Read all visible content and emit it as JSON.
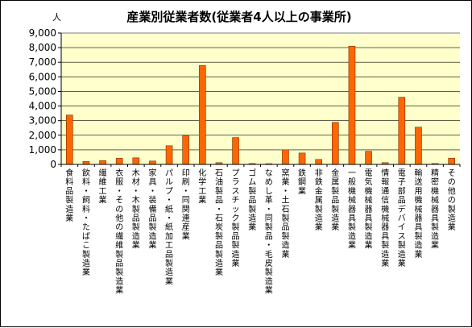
{
  "chart_data": {
    "type": "bar",
    "title": "産業別従業者数(従業者4人以上の事業所)",
    "unit_label": "人",
    "ylim": [
      0,
      9000
    ],
    "yticks": [
      "0",
      "1,000",
      "2,000",
      "3,000",
      "4,000",
      "5,000",
      "6,000",
      "7,000",
      "8,000",
      "9,000"
    ],
    "grid": true,
    "legend": "none",
    "categories": [
      "食料品製造業",
      "飲料・飼料・たばこ製造業",
      "繊維工業",
      "衣服・その他の繊維製品製造業",
      "木材・木製品製造業",
      "家具・装備品製造業",
      "パルプ・紙・紙加工品製造業",
      "印刷・同関連産業",
      "化学工業",
      "石油製品・石炭製品製造業",
      "プラスチック製品製造業",
      "ゴム製品製造業",
      "なめし革・同製品・毛皮製造業",
      "窯業・土石製品製造業",
      "鉄鋼業",
      "非鉄金属製造業",
      "金属製品製造業",
      "一般機械器具製造業",
      "電気機械器具製造業",
      "情報通信機械器具製造業",
      "電子部品デバイス製造業",
      "輸送用機械器具製造業",
      "精密機械器具製造業",
      "その他の製造業"
    ],
    "values": [
      3380,
      200,
      260,
      420,
      450,
      230,
      1280,
      1960,
      6780,
      120,
      1840,
      60,
      50,
      1000,
      780,
      340,
      2880,
      8100,
      900,
      120,
      4600,
      2550,
      60,
      430
    ],
    "colors": {
      "bar_fill": "#FF6600",
      "bar_stroke": "#7A2E00",
      "plot_bg": "#FFFFCC",
      "grid": "#000000",
      "title": "#000000"
    }
  }
}
